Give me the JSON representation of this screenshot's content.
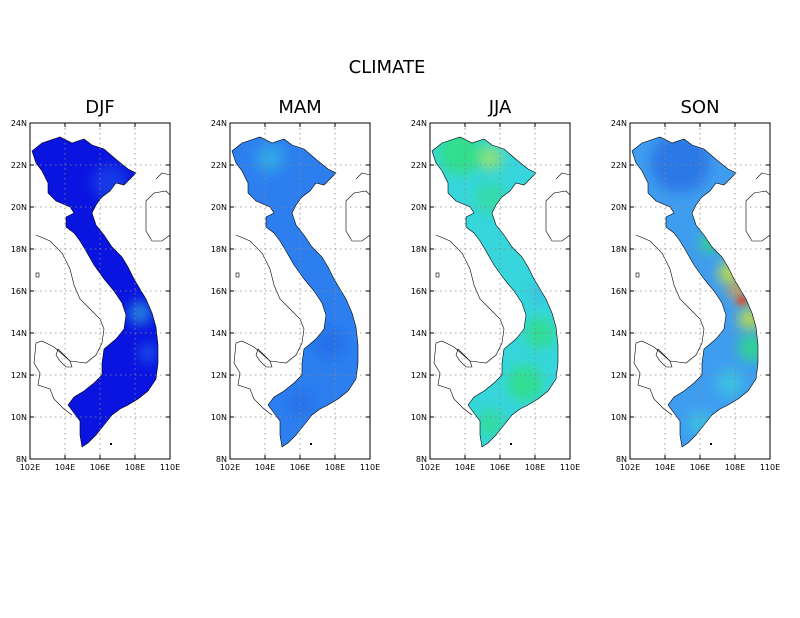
{
  "figure": {
    "title": "CLIMATE",
    "panels": [
      {
        "title": "DJF",
        "scheme": "djf"
      },
      {
        "title": "MAM",
        "scheme": "mam"
      },
      {
        "title": "JJA",
        "scheme": "jja"
      },
      {
        "title": "SON",
        "scheme": "son"
      }
    ],
    "x_ticks": [
      "102E",
      "104E",
      "106E",
      "108E",
      "110E"
    ],
    "y_ticks": [
      "24N",
      "22N",
      "20N",
      "18N",
      "16N",
      "14N",
      "12N",
      "10N",
      "8N"
    ],
    "colors": {
      "djf_base": "#0a14e0",
      "mam_base": "#2d7ff0",
      "jja_base": "#36d6dc",
      "son_base": "#3f9df0",
      "green": "#2fe07a",
      "yellow": "#d6e82a",
      "orange": "#f0a030",
      "red": "#e83a1e"
    }
  }
}
